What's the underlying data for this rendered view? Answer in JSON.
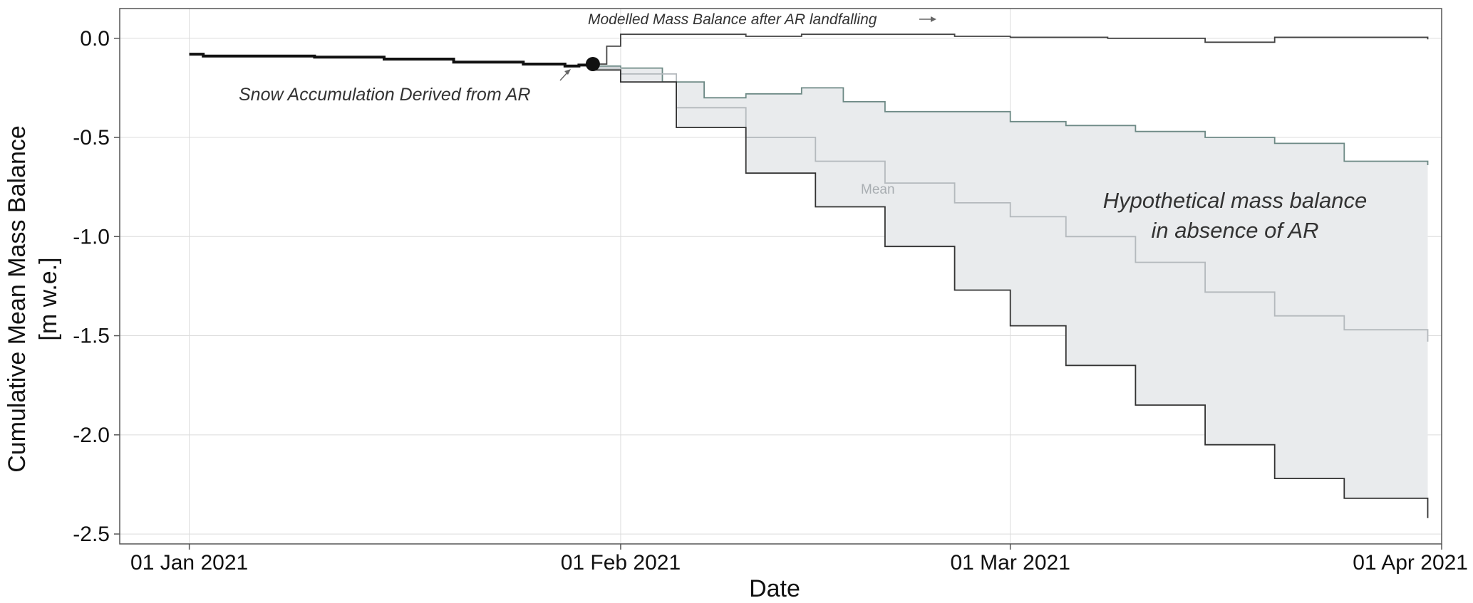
{
  "chart_data": {
    "type": "line",
    "xlabel": "Date",
    "ylabel": "Cumulative Mean Mass Balance",
    "ylabel_unit": "[m w.e.]",
    "x_domain": [
      "2020-12-27",
      "2021-04-01"
    ],
    "ylim": [
      -2.55,
      0.15
    ],
    "x_ticks": [
      {
        "date": "2021-01-01",
        "label": "01 Jan 2021"
      },
      {
        "date": "2021-02-01",
        "label": "01 Feb 2021"
      },
      {
        "date": "2021-03-01",
        "label": "01 Mar 2021"
      },
      {
        "date": "2021-04-01",
        "label": "01 Apr 2021"
      }
    ],
    "y_ticks": [
      {
        "value": 0,
        "label": "0.0"
      },
      {
        "value": -0.5,
        "label": "-0.5"
      },
      {
        "value": -1,
        "label": "-1.0"
      },
      {
        "value": -1.5,
        "label": "-1.5"
      },
      {
        "value": -2,
        "label": "-2.0"
      },
      {
        "value": -2.5,
        "label": "-2.5"
      }
    ],
    "grid": true,
    "series": [
      {
        "key": "observed",
        "color": "#111111",
        "points": [
          [
            "2021-01-01",
            -0.08
          ],
          [
            "2021-01-02",
            -0.09
          ],
          [
            "2021-01-05",
            -0.09
          ],
          [
            "2021-01-10",
            -0.095
          ],
          [
            "2021-01-15",
            -0.105
          ],
          [
            "2021-01-20",
            -0.12
          ],
          [
            "2021-01-25",
            -0.13
          ],
          [
            "2021-01-28",
            -0.14
          ],
          [
            "2021-01-29",
            -0.135
          ],
          [
            "2021-01-30",
            -0.13
          ]
        ]
      },
      {
        "key": "modelled",
        "color": "#444444",
        "points": [
          [
            "2021-01-30",
            -0.13
          ],
          [
            "2021-01-31",
            -0.04
          ],
          [
            "2021-02-01",
            0.02
          ],
          [
            "2021-02-05",
            0.02
          ],
          [
            "2021-02-10",
            0.01
          ],
          [
            "2021-02-14",
            0.02
          ],
          [
            "2021-02-20",
            0.02
          ],
          [
            "2021-02-25",
            0.01
          ],
          [
            "2021-03-01",
            0.005
          ],
          [
            "2021-03-08",
            0.0
          ],
          [
            "2021-03-15",
            -0.02
          ],
          [
            "2021-03-20",
            0.005
          ],
          [
            "2021-03-31",
            -0.005
          ]
        ]
      },
      {
        "key": "upper",
        "color": "#6e8a86",
        "points": [
          [
            "2021-01-30",
            -0.14
          ],
          [
            "2021-02-01",
            -0.15
          ],
          [
            "2021-02-04",
            -0.22
          ],
          [
            "2021-02-07",
            -0.3
          ],
          [
            "2021-02-10",
            -0.28
          ],
          [
            "2021-02-14",
            -0.25
          ],
          [
            "2021-02-17",
            -0.32
          ],
          [
            "2021-02-20",
            -0.37
          ],
          [
            "2021-02-24",
            -0.37
          ],
          [
            "2021-03-01",
            -0.42
          ],
          [
            "2021-03-05",
            -0.44
          ],
          [
            "2021-03-10",
            -0.47
          ],
          [
            "2021-03-15",
            -0.5
          ],
          [
            "2021-03-20",
            -0.53
          ],
          [
            "2021-03-25",
            -0.62
          ],
          [
            "2021-03-31",
            -0.64
          ]
        ]
      },
      {
        "key": "mean",
        "label": "Mean",
        "color": "#b4b9bd",
        "points": [
          [
            "2021-01-30",
            -0.15
          ],
          [
            "2021-02-01",
            -0.18
          ],
          [
            "2021-02-05",
            -0.35
          ],
          [
            "2021-02-10",
            -0.5
          ],
          [
            "2021-02-15",
            -0.62
          ],
          [
            "2021-02-20",
            -0.73
          ],
          [
            "2021-02-25",
            -0.83
          ],
          [
            "2021-03-01",
            -0.9
          ],
          [
            "2021-03-05",
            -1.0
          ],
          [
            "2021-03-10",
            -1.13
          ],
          [
            "2021-03-15",
            -1.28
          ],
          [
            "2021-03-20",
            -1.4
          ],
          [
            "2021-03-25",
            -1.47
          ],
          [
            "2021-03-31",
            -1.53
          ]
        ]
      },
      {
        "key": "lower",
        "color": "#333333",
        "points": [
          [
            "2021-01-30",
            -0.16
          ],
          [
            "2021-02-01",
            -0.22
          ],
          [
            "2021-02-05",
            -0.45
          ],
          [
            "2021-02-10",
            -0.68
          ],
          [
            "2021-02-15",
            -0.85
          ],
          [
            "2021-02-20",
            -1.05
          ],
          [
            "2021-02-25",
            -1.27
          ],
          [
            "2021-03-01",
            -1.45
          ],
          [
            "2021-03-05",
            -1.65
          ],
          [
            "2021-03-10",
            -1.85
          ],
          [
            "2021-03-15",
            -2.05
          ],
          [
            "2021-03-20",
            -2.22
          ],
          [
            "2021-03-25",
            -2.32
          ],
          [
            "2021-03-31",
            -2.42
          ]
        ]
      }
    ],
    "band": {
      "upper": "upper",
      "lower": "lower",
      "color": "#e9ebed"
    },
    "marker": {
      "date": "2021-01-30",
      "value": -0.13,
      "color": "#111111"
    },
    "annotations": {
      "snow_accumulation": "Snow Accumulation Derived from AR",
      "modelled_balance": "Modelled Mass Balance after AR landfalling",
      "hypothetical_line1": "Hypothetical mass balance",
      "hypothetical_line2": "in absence of AR"
    }
  }
}
